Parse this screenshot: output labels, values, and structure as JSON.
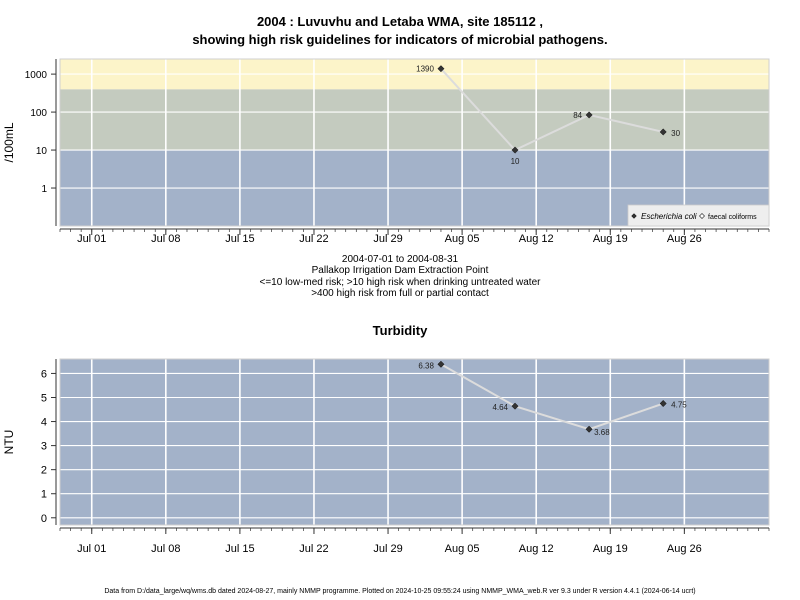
{
  "page": {
    "title_line1": "2004 : Luvuvhu and Letaba WMA, site 185112 ,",
    "title_line2": "showing high risk guidelines for indicators of microbial pathogens.",
    "date_range": "2004-07-01 to 2004-08-31",
    "site_name": "Pallakop Irrigation Dam Extraction Point",
    "guideline_1": "<=10 low-med risk; >10 high risk when drinking untreated water",
    "guideline_2": ">400 high risk from full or partial contact",
    "footer": "Data from D:/data_large/wq/wms.db dated 2024-08-27, mainly NMMP programme. Plotted on 2024-10-25 09:55:24 using NMMP_WMA_web.R ver 9.3 under R version 4.4.1 (2024-06-14 ucrt)"
  },
  "chart_data": [
    {
      "type": "line",
      "title": "",
      "ylabel": "/100mL",
      "xlabel": "",
      "yscale": "log",
      "ylim": [
        0.1,
        2500
      ],
      "xlim": [
        "2004-06-28",
        "2004-09-03"
      ],
      "x_ticks": [
        "Jul 01",
        "Jul 08",
        "Jul 15",
        "Jul 22",
        "Jul 29",
        "Aug 05",
        "Aug 12",
        "Aug 19",
        "Aug 26"
      ],
      "x_tick_dates": [
        "2004-07-01",
        "2004-07-08",
        "2004-07-15",
        "2004-07-22",
        "2004-07-29",
        "2004-08-05",
        "2004-08-12",
        "2004-08-19",
        "2004-08-26"
      ],
      "y_ticks": [
        "1",
        "10",
        "100",
        "1000"
      ],
      "y_tick_values": [
        1,
        10,
        100,
        1000
      ],
      "bands": [
        {
          "from": 0.1,
          "to": 10,
          "color": "#a3b2c9"
        },
        {
          "from": 10,
          "to": 400,
          "color": "#c4cbbf"
        },
        {
          "from": 400,
          "to": 2500,
          "color": "#fcf4c9"
        }
      ],
      "legend_position": "bottom-right",
      "legend": [
        "Escherichia coli",
        "faecal coliforms"
      ],
      "series": [
        {
          "name": "Escherichia coli",
          "x": [
            "2004-08-03",
            "2004-08-10",
            "2004-08-17",
            "2004-08-24"
          ],
          "y": [
            1390,
            10,
            84,
            30
          ],
          "labels": [
            "1390",
            "10",
            "84",
            "30"
          ],
          "marker": "filled-diamond",
          "color": "#333333"
        }
      ]
    },
    {
      "type": "line",
      "title": "Turbidity",
      "ylabel": "NTU",
      "xlabel": "",
      "ylim": [
        -0.3,
        6.6
      ],
      "xlim": [
        "2004-06-28",
        "2004-09-03"
      ],
      "x_ticks": [
        "Jul 01",
        "Jul 08",
        "Jul 15",
        "Jul 22",
        "Jul 29",
        "Aug 05",
        "Aug 12",
        "Aug 19",
        "Aug 26"
      ],
      "x_tick_dates": [
        "2004-07-01",
        "2004-07-08",
        "2004-07-15",
        "2004-07-22",
        "2004-07-29",
        "2004-08-05",
        "2004-08-12",
        "2004-08-19",
        "2004-08-26"
      ],
      "y_ticks": [
        "0",
        "1",
        "2",
        "3",
        "4",
        "5",
        "6"
      ],
      "y_tick_values": [
        0,
        1,
        2,
        3,
        4,
        5,
        6
      ],
      "background": "#a3b2c9",
      "series": [
        {
          "name": "",
          "x": [
            "2004-08-03",
            "2004-08-10",
            "2004-08-17",
            "2004-08-24"
          ],
          "y": [
            6.38,
            4.64,
            3.68,
            4.75
          ],
          "labels": [
            "6.38",
            "4.64",
            "3.68",
            "4.75"
          ],
          "marker": "filled-diamond",
          "color": "#333333"
        }
      ]
    }
  ]
}
